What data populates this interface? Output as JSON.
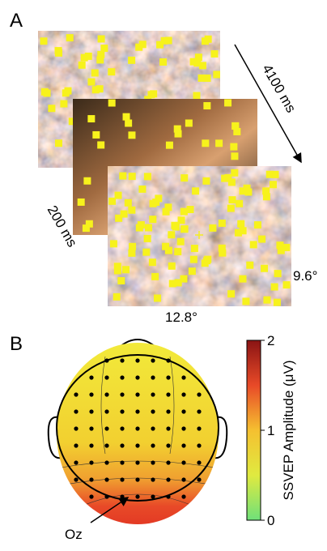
{
  "panel_a": {
    "label": "A",
    "duration": "4100 ms",
    "onset": "200 ms",
    "height": "9.6°",
    "width": "12.8°"
  },
  "panel_b": {
    "label": "B",
    "electrode": "Oz",
    "colorbar": {
      "label": "SSVEP Amplitude (μV)",
      "lim": [
        0,
        2
      ],
      "ticks": [
        0,
        1,
        2
      ]
    }
  }
}
